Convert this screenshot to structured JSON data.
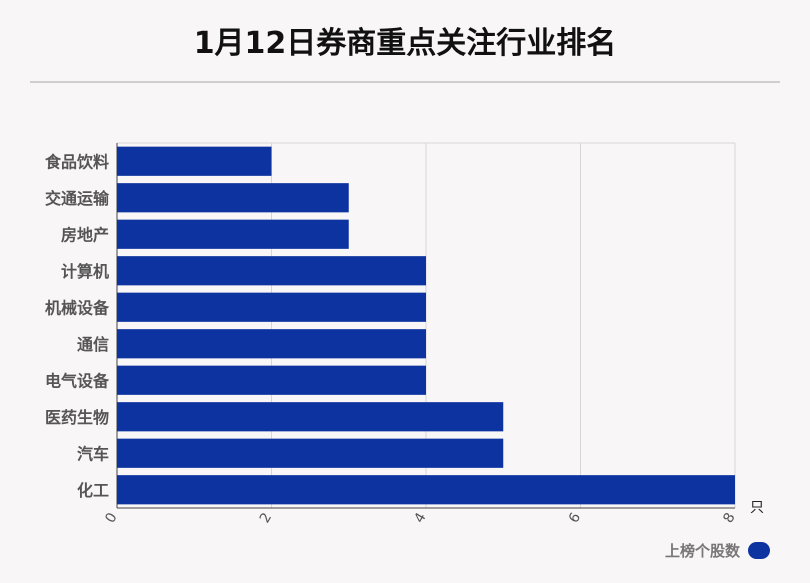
{
  "title": "1月12日券商重点关注行业排名",
  "chart_data": {
    "type": "bar",
    "orientation": "horizontal",
    "categories": [
      "食品饮料",
      "交通运输",
      "房地产",
      "计算机",
      "机械设备",
      "通信",
      "电气设备",
      "医药生物",
      "汽车",
      "化工"
    ],
    "series": [
      {
        "name": "上榜个股数",
        "values": [
          2,
          3,
          3,
          4,
          4,
          4,
          4,
          5,
          5,
          8
        ]
      }
    ],
    "xlim": [
      0,
      8
    ],
    "xticks": [
      0,
      2,
      4,
      6,
      8
    ],
    "xunit": "只",
    "grid": true,
    "legend": "bottom-right",
    "color": "#0c33a0"
  }
}
